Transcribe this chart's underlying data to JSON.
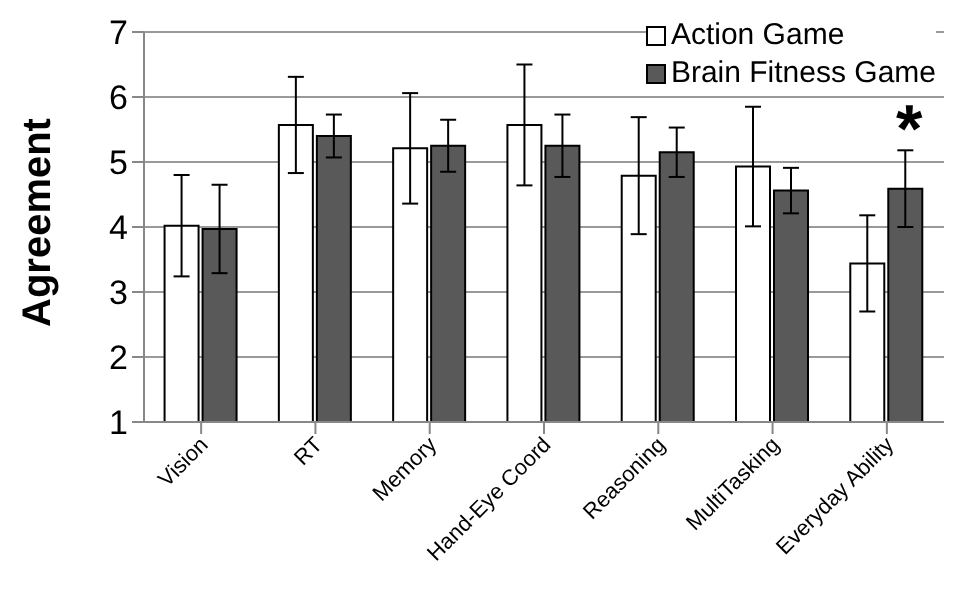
{
  "chart_data": {
    "type": "bar",
    "ylabel": "Agreement",
    "categories": [
      "Vision",
      "RT",
      "Memory",
      "Hand-Eye Coord",
      "Reasoning",
      "MultiTasking",
      "Everyday Ability"
    ],
    "series": [
      {
        "name": "Action Game",
        "color": "#ffffff",
        "values": [
          4.02,
          5.57,
          5.21,
          5.57,
          4.79,
          4.93,
          3.44
        ],
        "errors": [
          0.78,
          0.74,
          0.85,
          0.93,
          0.9,
          0.92,
          0.74
        ]
      },
      {
        "name": "Brain Fitness Game",
        "color": "#595959",
        "values": [
          3.97,
          5.4,
          5.25,
          5.25,
          5.15,
          4.56,
          4.59
        ],
        "errors": [
          0.68,
          0.33,
          0.4,
          0.48,
          0.38,
          0.35,
          0.59
        ]
      }
    ],
    "ylim": [
      1,
      7
    ],
    "yticks": [
      1,
      2,
      3,
      4,
      5,
      6,
      7
    ],
    "grid": "y",
    "legend": "top right",
    "annotations": [
      "*"
    ]
  }
}
